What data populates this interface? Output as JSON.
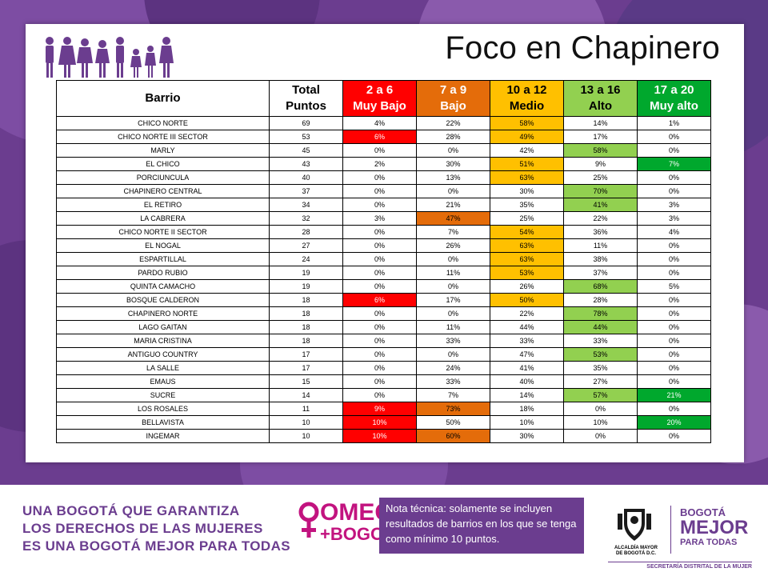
{
  "title": "Foco en Chapinero",
  "table": {
    "headers": {
      "barrio": "Barrio",
      "total_line1": "Total",
      "total_line2": "Puntos",
      "very_low_range": "2 a 6",
      "very_low_label": "Muy Bajo",
      "low_range": "7 a 9",
      "low_label": "Bajo",
      "medium_range": "10 a 12",
      "medium_label": "Medio",
      "high_range": "13 a 16",
      "high_label": "Alto",
      "very_high_range": "17 a 20",
      "very_high_label": "Muy alto"
    },
    "rows": [
      {
        "barrio": "CHICO NORTE",
        "total": "69",
        "values": [
          "4%",
          "22%",
          "58%",
          "14%",
          "1%"
        ],
        "highlight": [
          false,
          false,
          true,
          false,
          false
        ]
      },
      {
        "barrio": "CHICO NORTE III SECTOR",
        "total": "53",
        "values": [
          "6%",
          "28%",
          "49%",
          "17%",
          "0%"
        ],
        "highlight": [
          true,
          false,
          true,
          false,
          false
        ]
      },
      {
        "barrio": "MARLY",
        "total": "45",
        "values": [
          "0%",
          "0%",
          "42%",
          "58%",
          "0%"
        ],
        "highlight": [
          false,
          false,
          false,
          true,
          false
        ]
      },
      {
        "barrio": "EL CHICO",
        "total": "43",
        "values": [
          "2%",
          "30%",
          "51%",
          "9%",
          "7%"
        ],
        "highlight": [
          false,
          false,
          true,
          false,
          true
        ]
      },
      {
        "barrio": "PORCIUNCULA",
        "total": "40",
        "values": [
          "0%",
          "13%",
          "63%",
          "25%",
          "0%"
        ],
        "highlight": [
          false,
          false,
          true,
          false,
          false
        ]
      },
      {
        "barrio": "CHAPINERO CENTRAL",
        "total": "37",
        "values": [
          "0%",
          "0%",
          "30%",
          "70%",
          "0%"
        ],
        "highlight": [
          false,
          false,
          false,
          true,
          false
        ]
      },
      {
        "barrio": "EL RETIRO",
        "total": "34",
        "values": [
          "0%",
          "21%",
          "35%",
          "41%",
          "3%"
        ],
        "highlight": [
          false,
          false,
          false,
          true,
          false
        ]
      },
      {
        "barrio": "LA CABRERA",
        "total": "32",
        "values": [
          "3%",
          "47%",
          "25%",
          "22%",
          "3%"
        ],
        "highlight": [
          false,
          true,
          false,
          false,
          false
        ]
      },
      {
        "barrio": "CHICO NORTE II SECTOR",
        "total": "28",
        "values": [
          "0%",
          "7%",
          "54%",
          "36%",
          "4%"
        ],
        "highlight": [
          false,
          false,
          true,
          false,
          false
        ]
      },
      {
        "barrio": "EL NOGAL",
        "total": "27",
        "values": [
          "0%",
          "26%",
          "63%",
          "11%",
          "0%"
        ],
        "highlight": [
          false,
          false,
          true,
          false,
          false
        ]
      },
      {
        "barrio": "ESPARTILLAL",
        "total": "24",
        "values": [
          "0%",
          "0%",
          "63%",
          "38%",
          "0%"
        ],
        "highlight": [
          false,
          false,
          true,
          false,
          false
        ]
      },
      {
        "barrio": "PARDO RUBIO",
        "total": "19",
        "values": [
          "0%",
          "11%",
          "53%",
          "37%",
          "0%"
        ],
        "highlight": [
          false,
          false,
          true,
          false,
          false
        ]
      },
      {
        "barrio": "QUINTA CAMACHO",
        "total": "19",
        "values": [
          "0%",
          "0%",
          "26%",
          "68%",
          "5%"
        ],
        "highlight": [
          false,
          false,
          false,
          true,
          false
        ]
      },
      {
        "barrio": "BOSQUE CALDERON",
        "total": "18",
        "values": [
          "6%",
          "17%",
          "50%",
          "28%",
          "0%"
        ],
        "highlight": [
          true,
          false,
          true,
          false,
          false
        ]
      },
      {
        "barrio": "CHAPINERO NORTE",
        "total": "18",
        "values": [
          "0%",
          "0%",
          "22%",
          "78%",
          "0%"
        ],
        "highlight": [
          false,
          false,
          false,
          true,
          false
        ]
      },
      {
        "barrio": "LAGO GAITAN",
        "total": "18",
        "values": [
          "0%",
          "11%",
          "44%",
          "44%",
          "0%"
        ],
        "highlight": [
          false,
          false,
          false,
          true,
          false
        ]
      },
      {
        "barrio": "MARIA CRISTINA",
        "total": "18",
        "values": [
          "0%",
          "33%",
          "33%",
          "33%",
          "0%"
        ],
        "highlight": [
          false,
          false,
          false,
          false,
          false
        ]
      },
      {
        "barrio": "ANTIGUO COUNTRY",
        "total": "17",
        "values": [
          "0%",
          "0%",
          "47%",
          "53%",
          "0%"
        ],
        "highlight": [
          false,
          false,
          false,
          true,
          false
        ]
      },
      {
        "barrio": "LA SALLE",
        "total": "17",
        "values": [
          "0%",
          "24%",
          "41%",
          "35%",
          "0%"
        ],
        "highlight": [
          false,
          false,
          false,
          false,
          false
        ]
      },
      {
        "barrio": "EMAUS",
        "total": "15",
        "values": [
          "0%",
          "33%",
          "40%",
          "27%",
          "0%"
        ],
        "highlight": [
          false,
          false,
          false,
          false,
          false
        ]
      },
      {
        "barrio": "SUCRE",
        "total": "14",
        "values": [
          "0%",
          "7%",
          "14%",
          "57%",
          "21%"
        ],
        "highlight": [
          false,
          false,
          false,
          true,
          true
        ]
      },
      {
        "barrio": "LOS ROSALES",
        "total": "11",
        "values": [
          "9%",
          "73%",
          "18%",
          "0%",
          "0%"
        ],
        "highlight": [
          true,
          true,
          false,
          false,
          false
        ]
      },
      {
        "barrio": "BELLAVISTA",
        "total": "10",
        "values": [
          "10%",
          "50%",
          "10%",
          "10%",
          "20%"
        ],
        "highlight": [
          true,
          false,
          false,
          false,
          true
        ]
      },
      {
        "barrio": "INGEMAR",
        "total": "10",
        "values": [
          "10%",
          "60%",
          "30%",
          "0%",
          "0%"
        ],
        "highlight": [
          true,
          true,
          false,
          false,
          false
        ]
      }
    ]
  },
  "footer": {
    "slogan_line1": "UNA BOGOTÁ QUE GARANTIZA",
    "slogan_line2": "LOS DERECHOS DE LAS MUJERES",
    "slogan_line3": "ES UNA BOGOTÁ MEJOR PARA TODAS",
    "omeg_line1": "OMEG",
    "omeg_line2": "+BOGOTÁ",
    "note": "Nota técnica: solamente se incluyen resultados de barrios en los que se tenga como mínimo 10 puntos.",
    "alcaldia_line1": "ALCALDÍA MAYOR",
    "alcaldia_line2": "DE BOGOTÁ D.C.",
    "bogota_small": "BOGOTÁ",
    "bogota_big": "MEJOR",
    "bogota_sub": "PARA TODAS",
    "secretaria": "SECRETARÍA DISTRITAL DE LA MUJER"
  },
  "colors": {
    "brand_purple": "#6b3d8f",
    "very_low": "#ff0000",
    "low": "#e46c0a",
    "medium": "#ffc000",
    "high": "#92d050",
    "very_high": "#00a82d",
    "omeg_magenta": "#c2137f"
  },
  "icons": [
    "family-icon",
    "venus-icon",
    "coat-of-arms-icon"
  ]
}
